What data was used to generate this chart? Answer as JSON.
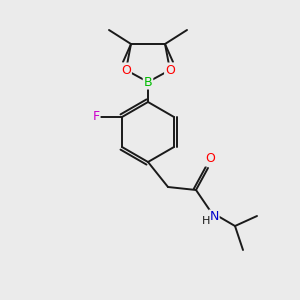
{
  "bg_color": "#ebebeb",
  "bond_color": "#1a1a1a",
  "atom_colors": {
    "O": "#ff0000",
    "B": "#00bb00",
    "F": "#cc00cc",
    "N": "#0000cc"
  },
  "figsize": [
    3.0,
    3.0
  ],
  "dpi": 100
}
